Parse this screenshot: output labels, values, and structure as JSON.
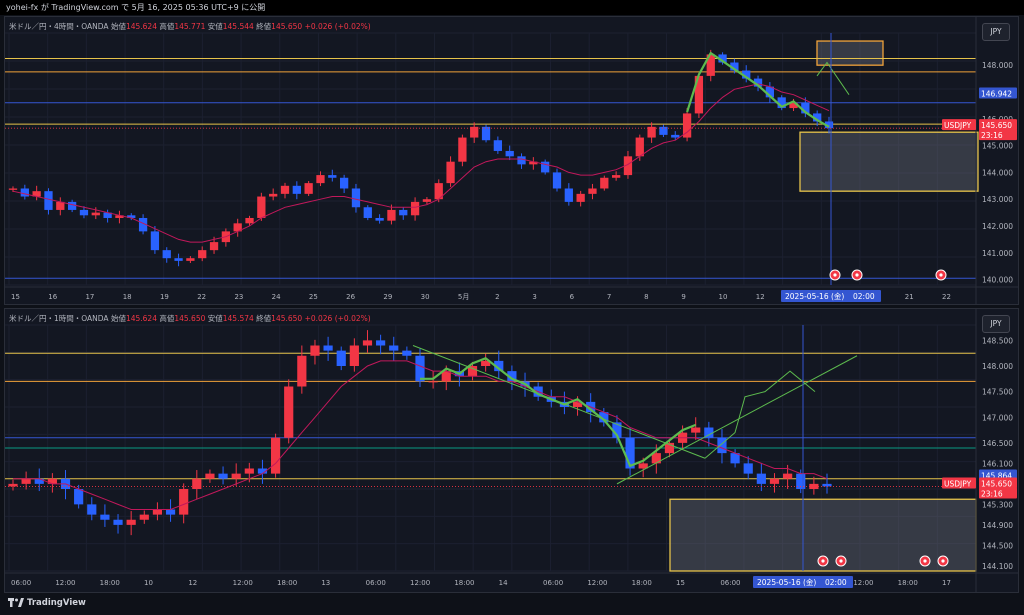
{
  "header": {
    "publish_line": "yohei-fx が TradingView.com で 5月 16, 2025 05:36 UTC+9 に公開"
  },
  "footer": {
    "brand": "TradingView"
  },
  "colors": {
    "up": "#089981",
    "up_used": "#f23645",
    "down": "#2962ff",
    "ma": "#c2185b",
    "wave": "#5dbb4e",
    "gold": "#e6c34a",
    "orange": "#f0a23a",
    "blue": "#3456d1",
    "bg": "#131722"
  },
  "panels": [
    {
      "legend_title": "米ドル／円・4時間・OANDA",
      "ohlc": {
        "o_label": "始値",
        "o": "145.624",
        "h_label": "高値",
        "h": "145.771",
        "l_label": "安値",
        "l": "145.544",
        "c_label": "終値",
        "c": "145.650",
        "chg": "+0.026 (+0.02%)"
      },
      "currency_button": "JPY",
      "price_labels": [
        "148.000",
        "146.000",
        "145.000",
        "144.000",
        "143.000",
        "142.000",
        "141.000",
        "140.000"
      ],
      "price_badges": {
        "level": "146.942",
        "symbol": "USDJPY",
        "last": "145.650",
        "countdown": "23:16"
      },
      "time_labels": [
        "15",
        "16",
        "17",
        "18",
        "19",
        "22",
        "23",
        "24",
        "25",
        "26",
        "29",
        "30",
        "5月",
        "2",
        "3",
        "6",
        "7",
        "8",
        "9",
        "10",
        "12",
        "13",
        "14",
        "20",
        "21",
        "22"
      ],
      "crosshair_date": "2025-05-16 (金)",
      "crosshair_time": "02:00"
    },
    {
      "legend_title": "米ドル／円・1時間・OANDA",
      "ohlc": {
        "o_label": "始値",
        "o": "145.624",
        "h_label": "高値",
        "h": "145.650",
        "l_label": "安値",
        "l": "145.574",
        "c_label": "終値",
        "c": "145.650",
        "chg": "+0.026 (+0.02%)"
      },
      "currency_button": "JPY",
      "price_labels": [
        "148.500",
        "148.000",
        "147.500",
        "147.000",
        "146.500",
        "146.100",
        "145.300",
        "144.900",
        "144.500",
        "144.100"
      ],
      "price_badges": {
        "level": "145.864",
        "symbol": "USDJPY",
        "last": "145.650",
        "countdown": "23:16"
      },
      "time_labels": [
        "06:00",
        "12:00",
        "18:00",
        "10",
        "12",
        "12:00",
        "18:00",
        "13",
        "06:00",
        "12:00",
        "18:00",
        "14",
        "06:00",
        "12:00",
        "18:00",
        "15",
        "06:00",
        "12:00",
        "18:00",
        "12:00",
        "18:00",
        "17"
      ],
      "crosshair_date": "2025-05-16 (金)",
      "crosshair_time": "02:00"
    }
  ],
  "chart_data": [
    {
      "type": "candlestick",
      "title": "米ドル／円・4時間・OANDA",
      "ylim": [
        139.8,
        149.2
      ],
      "close_path": [
        143.4,
        143.1,
        143.3,
        142.6,
        142.9,
        142.6,
        142.4,
        142.5,
        142.3,
        142.4,
        142.3,
        141.8,
        141.1,
        140.8,
        140.7,
        140.8,
        141.1,
        141.4,
        141.8,
        142.1,
        142.3,
        143.1,
        143.2,
        143.5,
        143.2,
        143.6,
        143.9,
        143.8,
        143.4,
        142.7,
        142.3,
        142.2,
        142.6,
        142.4,
        142.9,
        143.0,
        143.6,
        144.4,
        145.3,
        145.7,
        145.2,
        144.8,
        144.6,
        144.3,
        144.4,
        144.0,
        143.4,
        142.9,
        143.2,
        143.4,
        143.8,
        143.9,
        144.6,
        145.3,
        145.7,
        145.4,
        145.3,
        146.2,
        147.6,
        148.4,
        148.1,
        147.8,
        147.5,
        147.2,
        146.8,
        146.4,
        146.6,
        146.2,
        145.9,
        145.65
      ],
      "ma_path": [
        143.3,
        143.2,
        143.1,
        143.0,
        142.9,
        142.8,
        142.7,
        142.6,
        142.5,
        142.4,
        142.3,
        142.1,
        141.9,
        141.7,
        141.5,
        141.4,
        141.4,
        141.5,
        141.6,
        141.8,
        142.0,
        142.3,
        142.5,
        142.7,
        142.8,
        142.9,
        143.0,
        143.1,
        143.1,
        143.0,
        142.9,
        142.8,
        142.7,
        142.7,
        142.7,
        142.8,
        143.0,
        143.4,
        143.8,
        144.2,
        144.4,
        144.5,
        144.5,
        144.5,
        144.4,
        144.3,
        144.2,
        144.0,
        143.9,
        143.9,
        144.0,
        144.1,
        144.3,
        144.6,
        144.9,
        145.1,
        145.2,
        145.5,
        145.9,
        146.4,
        146.8,
        147.1,
        147.2,
        147.3,
        147.2,
        147.0,
        146.9,
        146.7,
        146.5,
        146.3
      ],
      "horizontal_levels": [
        {
          "price": 148.25,
          "color": "gold"
        },
        {
          "price": 147.75,
          "color": "orange"
        },
        {
          "price": 146.6,
          "color": "blue"
        },
        {
          "price": 145.8,
          "color": "gold"
        },
        {
          "price": 140.05,
          "color": "blue"
        }
      ],
      "zones": [
        {
          "p_top": 148.9,
          "p_bot": 148.0,
          "stroke": "orange"
        },
        {
          "p_top": 145.5,
          "p_bot": 143.3,
          "stroke": "gold"
        }
      ]
    },
    {
      "type": "candlestick",
      "title": "米ドル／円・1時間・OANDA",
      "ylim": [
        144.0,
        148.8
      ],
      "close_path": [
        145.7,
        145.8,
        145.7,
        145.8,
        145.6,
        145.3,
        145.1,
        145.0,
        144.9,
        145.0,
        145.1,
        145.2,
        145.1,
        145.6,
        145.8,
        145.9,
        145.8,
        145.9,
        146.0,
        145.9,
        146.6,
        147.6,
        148.2,
        148.4,
        148.3,
        148.0,
        148.4,
        148.5,
        148.4,
        148.3,
        148.2,
        147.7,
        147.7,
        147.9,
        147.8,
        148.0,
        148.1,
        147.9,
        147.7,
        147.6,
        147.4,
        147.3,
        147.2,
        147.3,
        147.1,
        146.9,
        146.6,
        146.0,
        146.1,
        146.3,
        146.5,
        146.7,
        146.8,
        146.6,
        146.3,
        146.1,
        145.9,
        145.7,
        145.8,
        145.9,
        145.6,
        145.7,
        145.65
      ],
      "ma_path": [
        145.8,
        145.8,
        145.8,
        145.7,
        145.7,
        145.6,
        145.5,
        145.4,
        145.3,
        145.2,
        145.2,
        145.2,
        145.2,
        145.3,
        145.4,
        145.5,
        145.6,
        145.7,
        145.8,
        145.9,
        146.1,
        146.4,
        146.7,
        147.0,
        147.3,
        147.6,
        147.8,
        148.0,
        148.1,
        148.1,
        148.1,
        148.0,
        147.9,
        147.9,
        147.8,
        147.8,
        147.8,
        147.7,
        147.7,
        147.6,
        147.5,
        147.4,
        147.4,
        147.3,
        147.2,
        147.1,
        147.0,
        146.8,
        146.7,
        146.6,
        146.6,
        146.6,
        146.6,
        146.5,
        146.4,
        146.3,
        146.2,
        146.1,
        146.0,
        146.0,
        145.9,
        145.9,
        145.8
      ],
      "horizontal_levels": [
        {
          "price": 148.25,
          "color": "gold"
        },
        {
          "price": 147.7,
          "color": "orange"
        },
        {
          "price": 146.6,
          "color": "blue"
        },
        {
          "price": 146.4,
          "color": "up"
        },
        {
          "price": 145.8,
          "color": "gold"
        }
      ],
      "zones": [
        {
          "p_top": 145.4,
          "p_bot": 144.0,
          "stroke": "gold"
        }
      ]
    }
  ]
}
